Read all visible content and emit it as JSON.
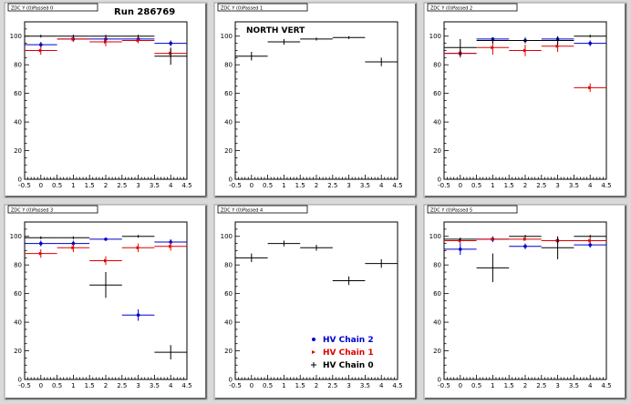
{
  "header": {
    "run_label": "Run 286769"
  },
  "panel_titles": [
    "ZDC Y (0)Passed 0",
    "ZDC Y (0)Passed 1",
    "ZDC Y (0)Passed 2",
    "ZDC Y (0)Passed 3",
    "ZDC Y (0)Passed 4",
    "ZDC Y (0)Passed 5"
  ],
  "colors": {
    "chain2": "#0000cc",
    "chain1": "#dd0000",
    "chain0": "#000000",
    "panel_bg": "#ffffff",
    "frame": "#d9d9d9"
  },
  "chart_data": [
    {
      "type": "scatter",
      "title": "",
      "xlim": [
        -0.5,
        4.5
      ],
      "ylim": [
        0,
        110
      ],
      "xticks": [
        "-0.5",
        "0",
        "0.5",
        "1",
        "1.5",
        "2",
        "2.5",
        "3",
        "3.5",
        "4",
        "4.5"
      ],
      "yticks": [
        "0",
        "20",
        "40",
        "60",
        "80",
        "100"
      ],
      "series": [
        {
          "name": "HV Chain 2",
          "color": "#0000cc",
          "points": [
            {
              "x": 0,
              "y": 94,
              "xerr": 0.5,
              "yerr": 2
            },
            {
              "x": 1,
              "y": 98,
              "xerr": 0.5,
              "yerr": 2
            },
            {
              "x": 2,
              "y": 98,
              "xerr": 0.5,
              "yerr": 1
            },
            {
              "x": 3,
              "y": 98,
              "xerr": 0.5,
              "yerr": 1
            },
            {
              "x": 4,
              "y": 95,
              "xerr": 0.5,
              "yerr": 2
            }
          ]
        },
        {
          "name": "HV Chain 1",
          "color": "#dd0000",
          "points": [
            {
              "x": 0,
              "y": 90,
              "xerr": 0.5,
              "yerr": 3
            },
            {
              "x": 1,
              "y": 98,
              "xerr": 0.5,
              "yerr": 2
            },
            {
              "x": 2,
              "y": 96,
              "xerr": 0.5,
              "yerr": 3
            },
            {
              "x": 3,
              "y": 97,
              "xerr": 0.5,
              "yerr": 2
            },
            {
              "x": 4,
              "y": 88,
              "xerr": 0.5,
              "yerr": 3
            }
          ]
        },
        {
          "name": "HV Chain 0",
          "color": "#000000",
          "points": [
            {
              "x": 0,
              "y": 100,
              "xerr": 0.5,
              "yerr": 1
            },
            {
              "x": 1,
              "y": 100,
              "xerr": 0.5,
              "yerr": 1
            },
            {
              "x": 2,
              "y": 100,
              "xerr": 0.5,
              "yerr": 1
            },
            {
              "x": 3,
              "y": 100,
              "xerr": 0.5,
              "yerr": 1
            },
            {
              "x": 4,
              "y": 86,
              "xerr": 0.5,
              "yerr": 6
            }
          ]
        }
      ]
    },
    {
      "type": "scatter",
      "title": "NORTH VERT",
      "xlim": [
        -0.5,
        4.5
      ],
      "ylim": [
        0,
        110
      ],
      "xticks": [
        "-0.5",
        "0",
        "0.5",
        "1",
        "1.5",
        "2",
        "2.5",
        "3",
        "3.5",
        "4",
        "4.5"
      ],
      "yticks": [
        "0",
        "20",
        "40",
        "60",
        "80",
        "100"
      ],
      "series": [
        {
          "name": "HV Chain 0",
          "color": "#000000",
          "points": [
            {
              "x": 0,
              "y": 86,
              "xerr": 0.5,
              "yerr": 3
            },
            {
              "x": 1,
              "y": 96,
              "xerr": 0.5,
              "yerr": 2
            },
            {
              "x": 2,
              "y": 98,
              "xerr": 0.5,
              "yerr": 1
            },
            {
              "x": 3,
              "y": 99,
              "xerr": 0.5,
              "yerr": 1
            },
            {
              "x": 4,
              "y": 82,
              "xerr": 0.5,
              "yerr": 3
            }
          ]
        }
      ]
    },
    {
      "type": "scatter",
      "title": "",
      "xlim": [
        -0.5,
        4.5
      ],
      "ylim": [
        0,
        110
      ],
      "xticks": [
        "-0.5",
        "0",
        "0.5",
        "1",
        "1.5",
        "2",
        "2.5",
        "3",
        "3.5",
        "4",
        "4.5"
      ],
      "yticks": [
        "0",
        "20",
        "40",
        "60",
        "80",
        "100"
      ],
      "series": [
        {
          "name": "HV Chain 2",
          "color": "#0000cc",
          "points": [
            {
              "x": 0,
              "y": 88,
              "xerr": 0.5,
              "yerr": 2
            },
            {
              "x": 1,
              "y": 98,
              "xerr": 0.5,
              "yerr": 1
            },
            {
              "x": 2,
              "y": 97,
              "xerr": 0.5,
              "yerr": 2
            },
            {
              "x": 3,
              "y": 98,
              "xerr": 0.5,
              "yerr": 1
            },
            {
              "x": 4,
              "y": 95,
              "xerr": 0.5,
              "yerr": 2
            }
          ]
        },
        {
          "name": "HV Chain 1",
          "color": "#dd0000",
          "points": [
            {
              "x": 0,
              "y": 88,
              "xerr": 0.5,
              "yerr": 3
            },
            {
              "x": 1,
              "y": 92,
              "xerr": 0.5,
              "yerr": 5
            },
            {
              "x": 2,
              "y": 90,
              "xerr": 0.5,
              "yerr": 4
            },
            {
              "x": 3,
              "y": 93,
              "xerr": 0.5,
              "yerr": 4
            },
            {
              "x": 4,
              "y": 64,
              "xerr": 0.5,
              "yerr": 3
            }
          ]
        },
        {
          "name": "HV Chain 0",
          "color": "#000000",
          "points": [
            {
              "x": 0,
              "y": 92,
              "xerr": 0.5,
              "yerr": 6
            },
            {
              "x": 1,
              "y": 97,
              "xerr": 0.5,
              "yerr": 2
            },
            {
              "x": 2,
              "y": 97,
              "xerr": 0.5,
              "yerr": 2
            },
            {
              "x": 3,
              "y": 97,
              "xerr": 0.5,
              "yerr": 3
            },
            {
              "x": 4,
              "y": 100,
              "xerr": 0.5,
              "yerr": 1
            }
          ]
        }
      ]
    },
    {
      "type": "scatter",
      "title": "",
      "xlim": [
        -0.5,
        4.5
      ],
      "ylim": [
        0,
        110
      ],
      "xticks": [
        "-0.5",
        "0",
        "0.5",
        "1",
        "1.5",
        "2",
        "2.5",
        "3",
        "3.5",
        "4",
        "4.5"
      ],
      "yticks": [
        "0",
        "20",
        "40",
        "60",
        "80",
        "100"
      ],
      "series": [
        {
          "name": "HV Chain 2",
          "color": "#0000cc",
          "points": [
            {
              "x": 0,
              "y": 95,
              "xerr": 0.5,
              "yerr": 2
            },
            {
              "x": 1,
              "y": 95,
              "xerr": 0.5,
              "yerr": 2
            },
            {
              "x": 2,
              "y": 98,
              "xerr": 0.5,
              "yerr": 1
            },
            {
              "x": 3,
              "y": 45,
              "xerr": 0.5,
              "yerr": 4
            },
            {
              "x": 4,
              "y": 96,
              "xerr": 0.5,
              "yerr": 2
            }
          ]
        },
        {
          "name": "HV Chain 1",
          "color": "#dd0000",
          "points": [
            {
              "x": 0,
              "y": 88,
              "xerr": 0.5,
              "yerr": 3
            },
            {
              "x": 1,
              "y": 92,
              "xerr": 0.5,
              "yerr": 3
            },
            {
              "x": 2,
              "y": 83,
              "xerr": 0.5,
              "yerr": 3
            },
            {
              "x": 3,
              "y": 92,
              "xerr": 0.5,
              "yerr": 3
            },
            {
              "x": 4,
              "y": 93,
              "xerr": 0.5,
              "yerr": 3
            }
          ]
        },
        {
          "name": "HV Chain 0",
          "color": "#000000",
          "points": [
            {
              "x": 0,
              "y": 99,
              "xerr": 0.5,
              "yerr": 1
            },
            {
              "x": 1,
              "y": 99,
              "xerr": 0.5,
              "yerr": 1
            },
            {
              "x": 2,
              "y": 66,
              "xerr": 0.5,
              "yerr": 9
            },
            {
              "x": 3,
              "y": 100,
              "xerr": 0.5,
              "yerr": 1
            },
            {
              "x": 4,
              "y": 19,
              "xerr": 0.5,
              "yerr": 5
            }
          ]
        }
      ]
    },
    {
      "type": "scatter",
      "title": "",
      "xlim": [
        -0.5,
        4.5
      ],
      "ylim": [
        0,
        110
      ],
      "xticks": [
        "-0.5",
        "0",
        "0.5",
        "1",
        "1.5",
        "2",
        "2.5",
        "3",
        "3.5",
        "4",
        "4.5"
      ],
      "yticks": [
        "0",
        "20",
        "40",
        "60",
        "80",
        "100"
      ],
      "legend": {
        "placement": "bottom-right",
        "entries": [
          {
            "label": "HV Chain 2",
            "color": "#0000cc",
            "marker": "dot"
          },
          {
            "label": "HV Chain 1",
            "color": "#dd0000",
            "marker": "tri"
          },
          {
            "label": "HV Chain 0",
            "color": "#000000",
            "marker": "plus"
          }
        ]
      },
      "series": [
        {
          "name": "HV Chain 0",
          "color": "#000000",
          "points": [
            {
              "x": 0,
              "y": 85,
              "xerr": 0.5,
              "yerr": 3
            },
            {
              "x": 1,
              "y": 95,
              "xerr": 0.5,
              "yerr": 2
            },
            {
              "x": 2,
              "y": 92,
              "xerr": 0.5,
              "yerr": 2
            },
            {
              "x": 3,
              "y": 69,
              "xerr": 0.5,
              "yerr": 3
            },
            {
              "x": 4,
              "y": 81,
              "xerr": 0.5,
              "yerr": 3
            }
          ]
        }
      ]
    },
    {
      "type": "scatter",
      "title": "",
      "xlim": [
        -0.5,
        4.5
      ],
      "ylim": [
        0,
        110
      ],
      "xticks": [
        "-0.5",
        "0",
        "0.5",
        "1",
        "1.5",
        "2",
        "2.5",
        "3",
        "3.5",
        "4",
        "4.5"
      ],
      "yticks": [
        "0",
        "20",
        "40",
        "60",
        "80",
        "100"
      ],
      "series": [
        {
          "name": "HV Chain 2",
          "color": "#0000cc",
          "points": [
            {
              "x": 0,
              "y": 91,
              "xerr": 0.5,
              "yerr": 4
            },
            {
              "x": 1,
              "y": 98,
              "xerr": 0.5,
              "yerr": 2
            },
            {
              "x": 2,
              "y": 93,
              "xerr": 0.5,
              "yerr": 2
            },
            {
              "x": 3,
              "y": 97,
              "xerr": 0.5,
              "yerr": 2
            },
            {
              "x": 4,
              "y": 94,
              "xerr": 0.5,
              "yerr": 2
            }
          ]
        },
        {
          "name": "HV Chain 1",
          "color": "#dd0000",
          "points": [
            {
              "x": 0,
              "y": 97,
              "xerr": 0.5,
              "yerr": 2
            },
            {
              "x": 1,
              "y": 98,
              "xerr": 0.5,
              "yerr": 1
            },
            {
              "x": 2,
              "y": 98,
              "xerr": 0.5,
              "yerr": 1
            },
            {
              "x": 3,
              "y": 97,
              "xerr": 0.5,
              "yerr": 2
            },
            {
              "x": 4,
              "y": 97,
              "xerr": 0.5,
              "yerr": 2
            }
          ]
        },
        {
          "name": "HV Chain 0",
          "color": "#000000",
          "points": [
            {
              "x": 0,
              "y": 98,
              "xerr": 0.5,
              "yerr": 1
            },
            {
              "x": 1,
              "y": 78,
              "xerr": 0.5,
              "yerr": 10
            },
            {
              "x": 2,
              "y": 100,
              "xerr": 0.5,
              "yerr": 1
            },
            {
              "x": 3,
              "y": 92,
              "xerr": 0.5,
              "yerr": 8
            },
            {
              "x": 4,
              "y": 100,
              "xerr": 0.5,
              "yerr": 1
            }
          ]
        }
      ]
    }
  ]
}
